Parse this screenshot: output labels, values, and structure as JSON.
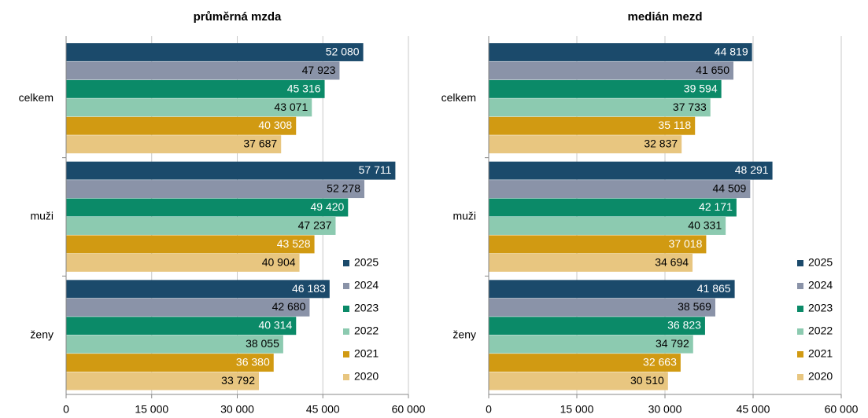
{
  "chart_data": [
    {
      "type": "bar",
      "orientation": "horizontal",
      "title": "průměrná mzda",
      "categories": [
        "celkem",
        "muži",
        "ženy"
      ],
      "series": [
        {
          "name": "2025",
          "color": "#1b4a6b",
          "label_color": "#ffffff",
          "values": [
            52080,
            57711,
            46183
          ],
          "value_labels": [
            "52 080",
            "57 711",
            "46 183"
          ]
        },
        {
          "name": "2024",
          "color": "#8a93a8",
          "label_color": "#000000",
          "values": [
            47923,
            52278,
            42680
          ],
          "value_labels": [
            "47 923",
            "52 278",
            "42 680"
          ]
        },
        {
          "name": "2023",
          "color": "#0b8a68",
          "label_color": "#ffffff",
          "values": [
            45316,
            49420,
            40314
          ],
          "value_labels": [
            "45 316",
            "49 420",
            "40 314"
          ]
        },
        {
          "name": "2022",
          "color": "#8ccab0",
          "label_color": "#000000",
          "values": [
            43071,
            47237,
            38055
          ],
          "value_labels": [
            "43 071",
            "47 237",
            "38 055"
          ]
        },
        {
          "name": "2021",
          "color": "#d19a12",
          "label_color": "#ffffff",
          "values": [
            40308,
            43528,
            36380
          ],
          "value_labels": [
            "40 308",
            "43 528",
            "36 380"
          ]
        },
        {
          "name": "2020",
          "color": "#e8c680",
          "label_color": "#000000",
          "values": [
            37687,
            40904,
            33792
          ],
          "value_labels": [
            "37 687",
            "40 904",
            "33 792"
          ]
        }
      ],
      "xlim": [
        0,
        60000
      ],
      "xticks": [
        0,
        {
          "value": 15000,
          "label": "15 000"
        },
        {
          "value": 30000,
          "label": "30 000"
        },
        {
          "value": 45000,
          "label": "45 000"
        },
        {
          "value": 60000,
          "label": "60 000"
        }
      ],
      "grid": true,
      "legend": "lower right"
    },
    {
      "type": "bar",
      "orientation": "horizontal",
      "title": "medián mezd",
      "categories": [
        "celkem",
        "muži",
        "ženy"
      ],
      "series": [
        {
          "name": "2025",
          "color": "#1b4a6b",
          "label_color": "#ffffff",
          "values": [
            44819,
            48291,
            41865
          ],
          "value_labels": [
            "44 819",
            "48 291",
            "41 865"
          ]
        },
        {
          "name": "2024",
          "color": "#8a93a8",
          "label_color": "#000000",
          "values": [
            41650,
            44509,
            38569
          ],
          "value_labels": [
            "41 650",
            "44 509",
            "38 569"
          ]
        },
        {
          "name": "2023",
          "color": "#0b8a68",
          "label_color": "#ffffff",
          "values": [
            39594,
            42171,
            36823
          ],
          "value_labels": [
            "39 594",
            "42 171",
            "36 823"
          ]
        },
        {
          "name": "2022",
          "color": "#8ccab0",
          "label_color": "#000000",
          "values": [
            37733,
            40331,
            34792
          ],
          "value_labels": [
            "37 733",
            "40 331",
            "34 792"
          ]
        },
        {
          "name": "2021",
          "color": "#d19a12",
          "label_color": "#ffffff",
          "values": [
            35118,
            37018,
            32663
          ],
          "value_labels": [
            "35 118",
            "37 018",
            "32 663"
          ]
        },
        {
          "name": "2020",
          "color": "#e8c680",
          "label_color": "#000000",
          "values": [
            32837,
            34694,
            30510
          ],
          "value_labels": [
            "32 837",
            "34 694",
            "30 510"
          ]
        }
      ],
      "xlim": [
        0,
        60000
      ],
      "xticks": [
        0,
        {
          "value": 15000,
          "label": "15 000"
        },
        {
          "value": 30000,
          "label": "30 000"
        },
        {
          "value": 45000,
          "label": "45 000"
        },
        {
          "value": 60000,
          "label": "60 000"
        }
      ],
      "grid": true,
      "legend": "lower right"
    }
  ]
}
